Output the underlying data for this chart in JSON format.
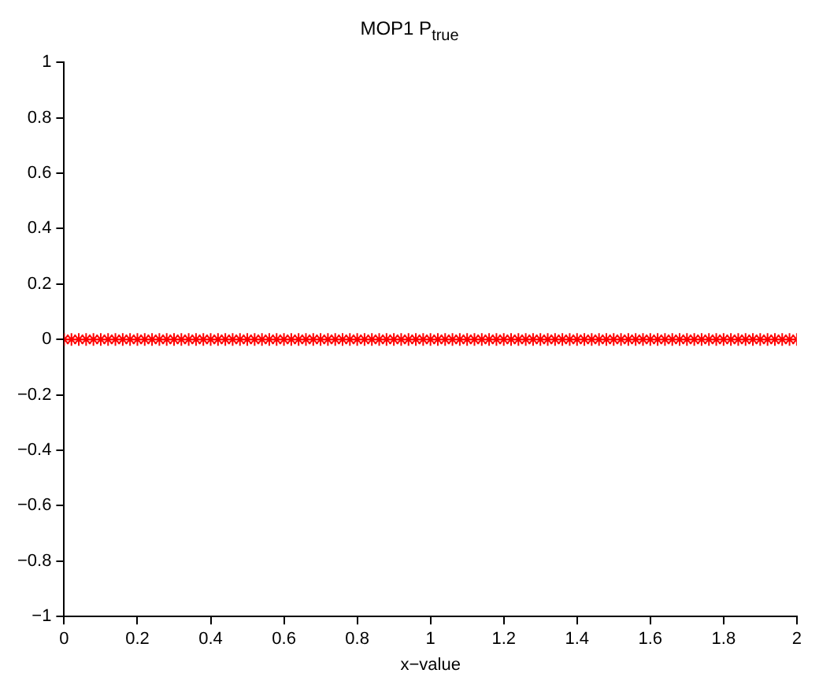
{
  "chart_data": {
    "type": "scatter",
    "title": "MOP1 P$_{true}$",
    "xlabel": "x−value",
    "x": [
      0,
      0.02,
      0.04,
      0.06,
      0.08,
      0.1,
      0.12,
      0.14,
      0.16,
      0.18,
      0.2,
      0.22,
      0.24,
      0.26,
      0.28,
      0.3,
      0.32,
      0.34,
      0.36,
      0.38,
      0.4,
      0.42,
      0.44,
      0.46,
      0.48,
      0.5,
      0.52,
      0.54,
      0.56,
      0.58,
      0.6,
      0.62,
      0.64,
      0.66,
      0.68,
      0.7,
      0.72,
      0.74,
      0.76,
      0.78,
      0.8,
      0.82,
      0.84,
      0.86,
      0.88,
      0.9,
      0.92,
      0.94,
      0.96,
      0.98,
      1,
      1.02,
      1.04,
      1.06,
      1.08,
      1.1,
      1.12,
      1.14,
      1.16,
      1.18,
      1.2,
      1.22,
      1.24,
      1.26,
      1.28,
      1.3,
      1.32,
      1.34,
      1.36,
      1.38,
      1.4,
      1.42,
      1.44,
      1.46,
      1.48,
      1.5,
      1.52,
      1.54,
      1.56,
      1.58,
      1.6,
      1.62,
      1.64,
      1.66,
      1.68,
      1.7,
      1.72,
      1.74,
      1.76,
      1.78,
      1.8,
      1.82,
      1.84,
      1.86,
      1.88,
      1.9,
      1.92,
      1.94,
      1.96,
      1.98,
      2
    ],
    "series": [
      {
        "color": "#ff0000",
        "values": [
          0,
          0,
          0,
          0,
          0,
          0,
          0,
          0,
          0,
          0,
          0,
          0,
          0,
          0,
          0,
          0,
          0,
          0,
          0,
          0,
          0,
          0,
          0,
          0,
          0,
          0,
          0,
          0,
          0,
          0,
          0,
          0,
          0,
          0,
          0,
          0,
          0,
          0,
          0,
          0,
          0,
          0,
          0,
          0,
          0,
          0,
          0,
          0,
          0,
          0,
          0,
          0,
          0,
          0,
          0,
          0,
          0,
          0,
          0,
          0,
          0,
          0,
          0,
          0,
          0,
          0,
          0,
          0,
          0,
          0,
          0,
          0,
          0,
          0,
          0,
          0,
          0,
          0,
          0,
          0,
          0,
          0,
          0,
          0,
          0,
          0,
          0,
          0,
          0,
          0,
          0,
          0,
          0,
          0,
          0,
          0,
          0,
          0,
          0,
          0,
          0
        ]
      }
    ],
    "marker": "cross",
    "xlim": [
      0,
      2
    ],
    "ylim": [
      -1,
      1
    ],
    "xticks": [
      0,
      0.2,
      0.4,
      0.6,
      0.8,
      1,
      1.2,
      1.4,
      1.6,
      1.8,
      2
    ],
    "yticks": [
      -1,
      -0.8,
      -0.6,
      -0.4,
      -0.2,
      0,
      0.2,
      0.4,
      0.6,
      0.8,
      1
    ],
    "grid": false,
    "legend": false
  }
}
